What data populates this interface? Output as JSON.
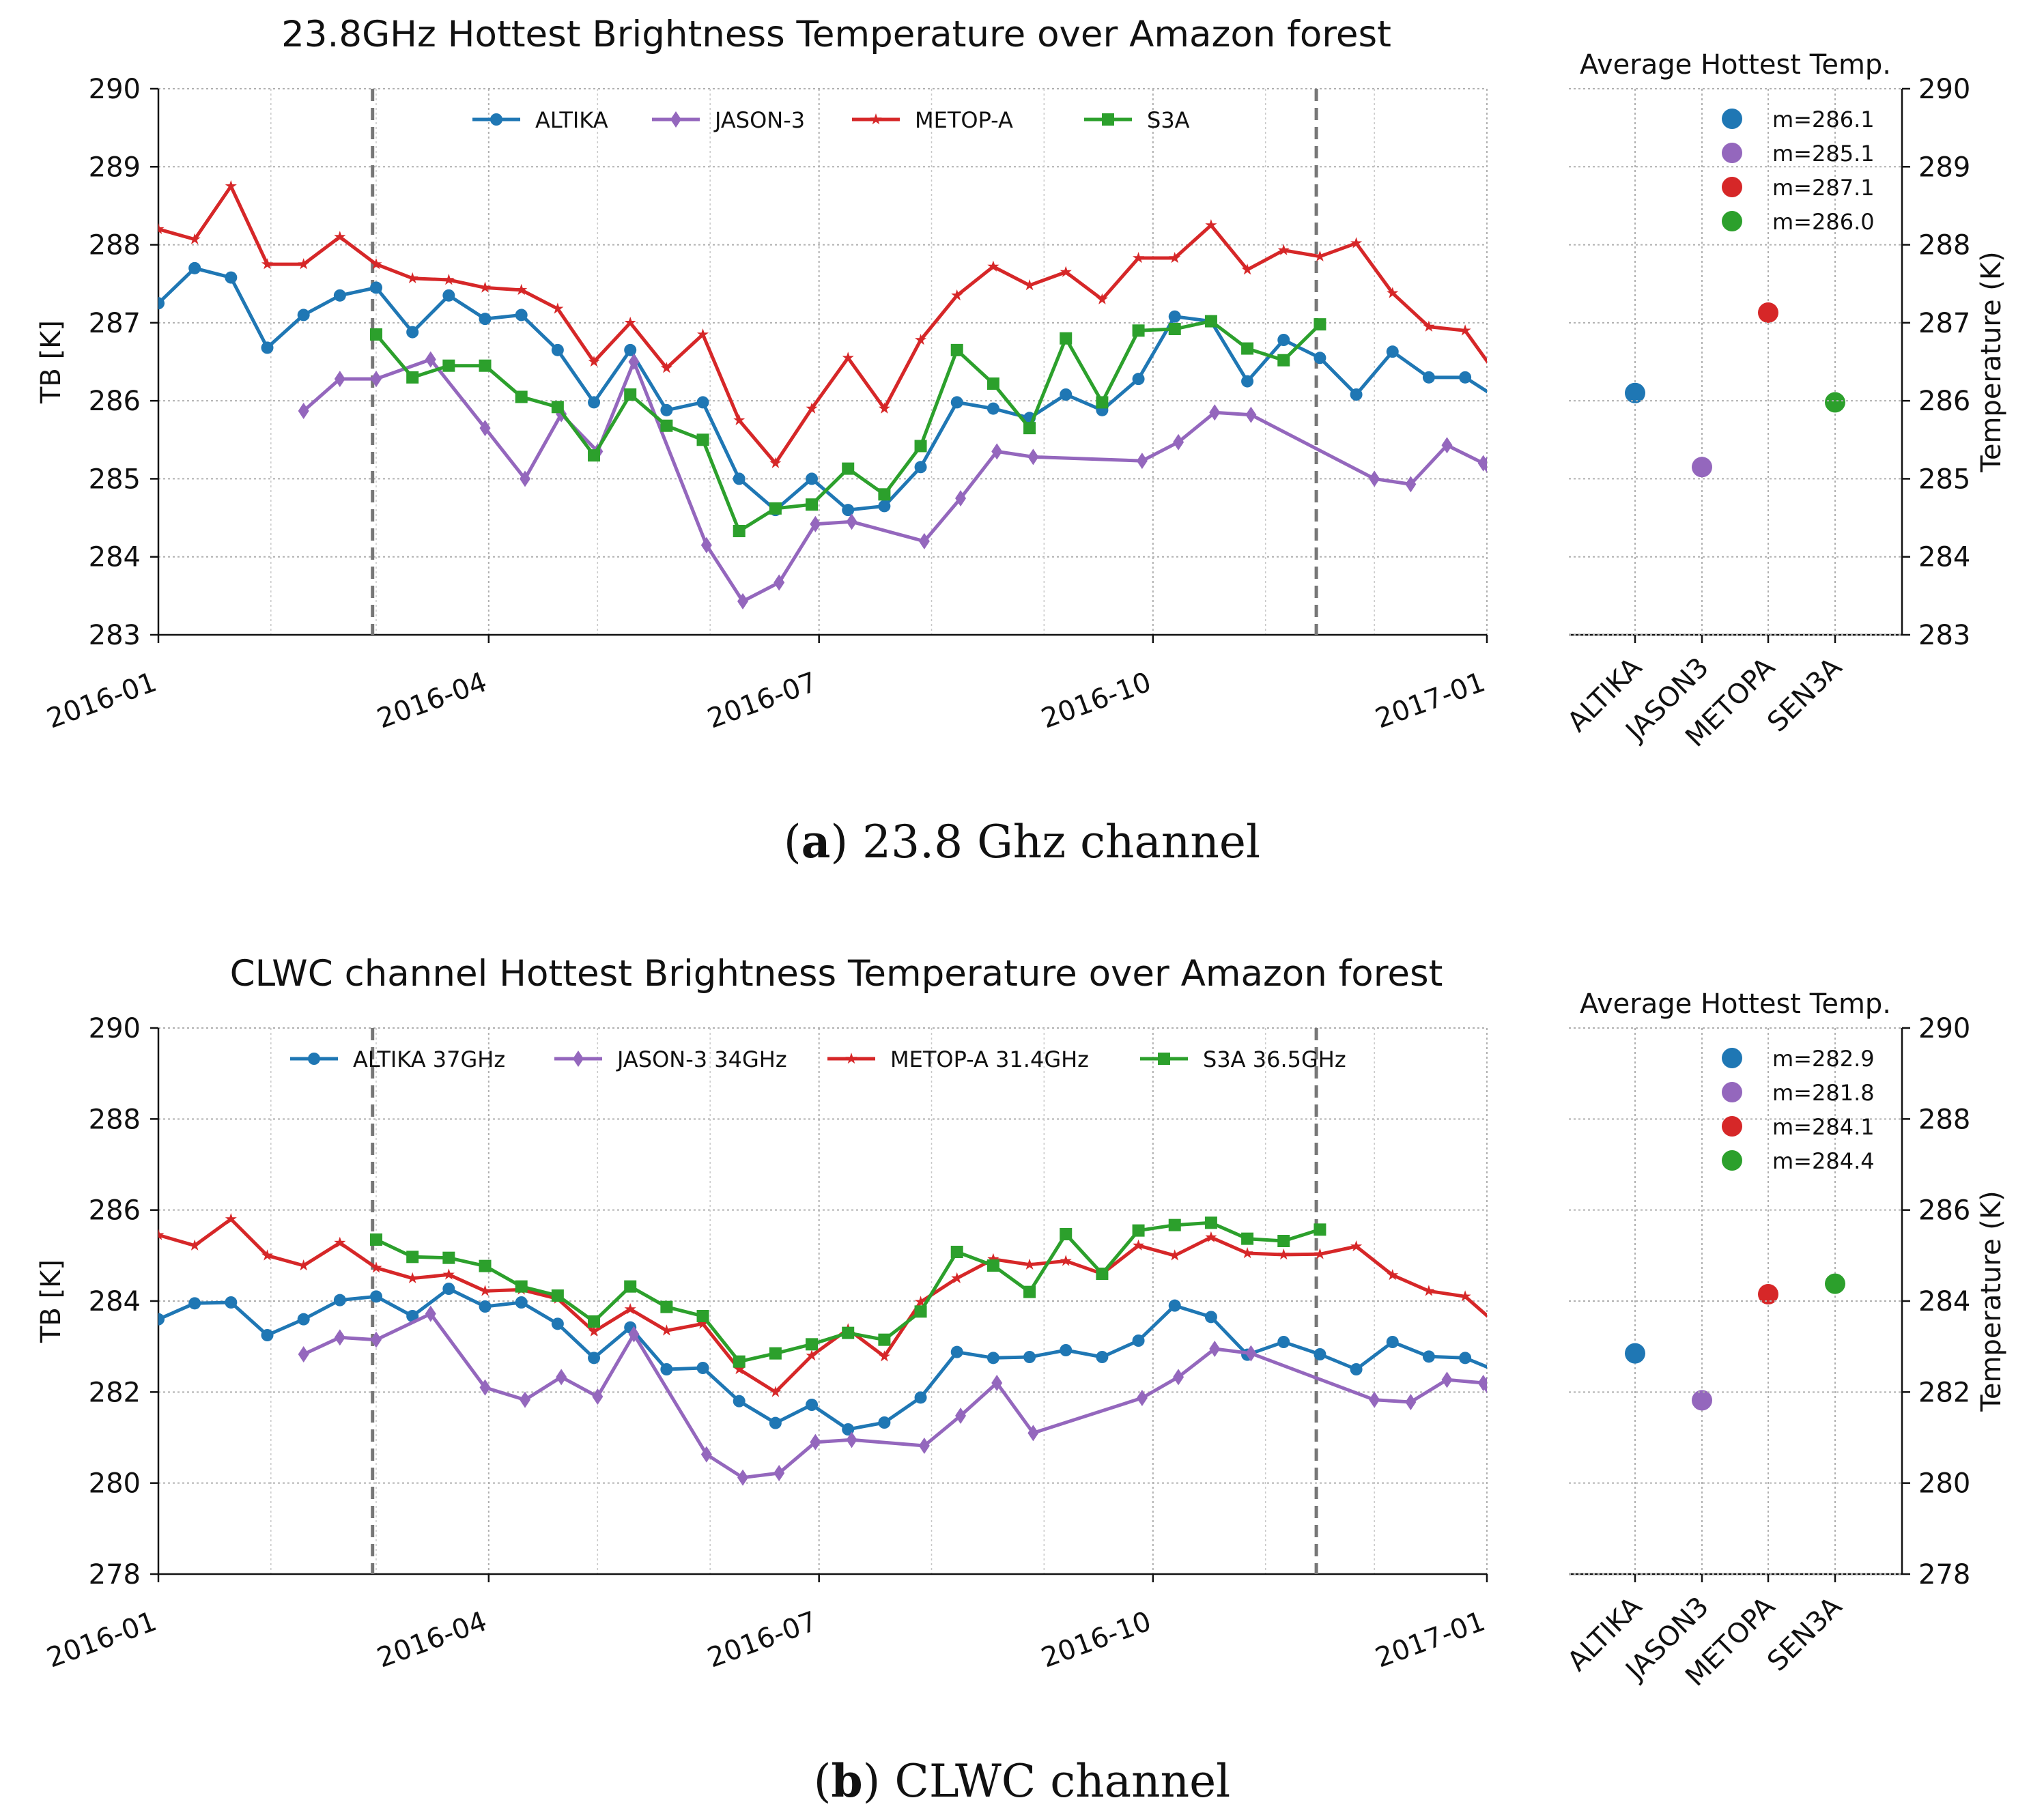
{
  "chart_data": [
    {
      "type": "line",
      "title": "23.8GHz Hottest Brightness Temperature over Amazon forest",
      "xlabel": "",
      "ylabel": "TB [K]",
      "ylim": [
        283,
        290
      ],
      "yticks": [
        "283",
        "284",
        "285",
        "286",
        "287",
        "288",
        "289",
        "290"
      ],
      "xticks": [
        "2016-01",
        "2016-04",
        "2016-07",
        "2016-10",
        "2017-01"
      ],
      "xlim": [
        "2016-01-01",
        "2017-01-01"
      ],
      "vlines": [
        "2016-02-29",
        "2016-11-15"
      ],
      "legend_location": "top-center",
      "series": [
        {
          "name": "ALTIKA",
          "color": "#1f77b4",
          "marker": "circle",
          "start": "2016-01-01",
          "values": [
            287.25,
            287.7,
            287.58,
            286.68,
            287.1,
            287.35,
            287.45,
            286.88,
            287.35,
            287.05,
            287.1,
            286.65,
            285.98,
            286.65,
            285.88,
            285.98,
            285.0,
            284.6,
            285.0,
            284.6,
            284.65,
            285.15,
            285.98,
            285.9,
            285.78,
            286.08,
            285.88,
            286.28,
            287.08,
            287.02,
            286.25,
            286.78,
            286.55,
            286.08,
            286.63,
            286.3,
            286.3,
            286.0
          ]
        },
        {
          "name": "JASON-3",
          "color": "#9467bd",
          "marker": "diamond",
          "points": [
            [
              "2016-02-10",
              285.87
            ],
            [
              "2016-02-20",
              286.28
            ],
            [
              "2016-03-01",
              286.28
            ],
            [
              "2016-03-16",
              286.53
            ],
            [
              "2016-03-31",
              285.65
            ],
            [
              "2016-04-11",
              285.0
            ],
            [
              "2016-04-21",
              285.83
            ],
            [
              "2016-05-01",
              285.35
            ],
            [
              "2016-05-11",
              286.5
            ],
            [
              "2016-05-31",
              284.15
            ],
            [
              "2016-06-10",
              283.43
            ],
            [
              "2016-06-20",
              283.67
            ],
            [
              "2016-06-30",
              284.42
            ],
            [
              "2016-07-10",
              284.45
            ],
            [
              "2016-07-30",
              284.2
            ],
            [
              "2016-08-09",
              284.75
            ],
            [
              "2016-08-19",
              285.35
            ],
            [
              "2016-08-29",
              285.28
            ],
            [
              "2016-09-28",
              285.23
            ],
            [
              "2016-10-08",
              285.47
            ],
            [
              "2016-10-18",
              285.85
            ],
            [
              "2016-10-28",
              285.82
            ],
            [
              "2016-12-01",
              285.0
            ],
            [
              "2016-12-11",
              284.93
            ],
            [
              "2016-12-21",
              285.43
            ],
            [
              "2016-12-31",
              285.2
            ],
            [
              "2017-01-01",
              285.18
            ]
          ]
        },
        {
          "name": "METOP-A",
          "color": "#d62728",
          "marker": "star",
          "start": "2016-01-01",
          "values": [
            288.2,
            288.07,
            288.75,
            287.75,
            287.75,
            288.1,
            287.75,
            287.57,
            287.55,
            287.45,
            287.42,
            287.18,
            286.5,
            287.0,
            286.42,
            286.85,
            285.75,
            285.2,
            285.9,
            286.55,
            285.9,
            286.78,
            287.35,
            287.72,
            287.48,
            287.65,
            287.3,
            287.83,
            287.83,
            288.25,
            287.68,
            287.93,
            287.85,
            288.02,
            287.38,
            286.95,
            286.9,
            286.25
          ]
        },
        {
          "name": "S3A",
          "color": "#2ca02c",
          "marker": "square",
          "start": "2016-03-01",
          "values": [
            286.85,
            286.3,
            286.45,
            286.45,
            286.05,
            285.92,
            285.3,
            286.08,
            285.68,
            285.5,
            284.33,
            284.62,
            284.67,
            285.13,
            284.8,
            285.42,
            286.65,
            286.22,
            285.65,
            286.8,
            285.98,
            286.9,
            286.92,
            287.02,
            286.67,
            286.52,
            286.98
          ]
        }
      ],
      "side_panel": {
        "title": "Average Hottest Temp.",
        "ylabel": "Temperature (K)",
        "categories": [
          "ALTIKA",
          "JASON3",
          "METOPA",
          "SEN3A"
        ],
        "values": [
          286.1,
          285.15,
          287.13,
          285.98
        ],
        "legend_labels": [
          "m=286.1",
          "m=285.1",
          "m=287.1",
          "m=286.0"
        ],
        "colors": [
          "#1f77b4",
          "#9467bd",
          "#d62728",
          "#2ca02c"
        ],
        "ylim": [
          283,
          290
        ],
        "yticks": [
          "283",
          "284",
          "285",
          "286",
          "287",
          "288",
          "289",
          "290"
        ]
      },
      "caption": {
        "label": "a",
        "text": " 23.8 Ghz channel"
      }
    },
    {
      "type": "line",
      "title": "CLWC channel Hottest Brightness Temperature over Amazon forest",
      "xlabel": "",
      "ylabel": "TB [K]",
      "ylim": [
        278,
        290
      ],
      "yticks": [
        "278",
        "280",
        "282",
        "284",
        "286",
        "288",
        "290"
      ],
      "xticks": [
        "2016-01",
        "2016-04",
        "2016-07",
        "2016-10",
        "2017-01"
      ],
      "xlim": [
        "2016-01-01",
        "2017-01-01"
      ],
      "vlines": [
        "2016-02-29",
        "2016-11-15"
      ],
      "legend_location": "top-center",
      "series": [
        {
          "name": "ALTIKA 37GHz",
          "color": "#1f77b4",
          "marker": "circle",
          "start": "2016-01-01",
          "values": [
            283.6,
            283.95,
            283.97,
            283.25,
            283.6,
            284.02,
            284.1,
            283.67,
            284.27,
            283.88,
            283.97,
            283.5,
            282.75,
            283.42,
            282.5,
            282.53,
            281.8,
            281.32,
            281.72,
            281.18,
            281.33,
            281.88,
            282.88,
            282.75,
            282.77,
            282.92,
            282.77,
            283.13,
            283.9,
            283.65,
            282.82,
            283.1,
            282.83,
            282.5,
            283.1,
            282.78,
            282.75,
            282.42
          ]
        },
        {
          "name": "JASON-3 34GHz",
          "color": "#9467bd",
          "marker": "diamond",
          "points": [
            [
              "2016-02-10",
              282.83
            ],
            [
              "2016-02-20",
              283.2
            ],
            [
              "2016-03-01",
              283.15
            ],
            [
              "2016-03-16",
              283.72
            ],
            [
              "2016-03-31",
              282.1
            ],
            [
              "2016-04-11",
              281.83
            ],
            [
              "2016-04-21",
              282.33
            ],
            [
              "2016-05-01",
              281.9
            ],
            [
              "2016-05-11",
              283.27
            ],
            [
              "2016-05-31",
              280.63
            ],
            [
              "2016-06-10",
              280.12
            ],
            [
              "2016-06-20",
              280.22
            ],
            [
              "2016-06-30",
              280.9
            ],
            [
              "2016-07-10",
              280.95
            ],
            [
              "2016-07-30",
              280.82
            ],
            [
              "2016-08-09",
              281.48
            ],
            [
              "2016-08-19",
              282.2
            ],
            [
              "2016-08-29",
              281.1
            ],
            [
              "2016-09-28",
              281.87
            ],
            [
              "2016-10-08",
              282.33
            ],
            [
              "2016-10-18",
              282.95
            ],
            [
              "2016-10-28",
              282.85
            ],
            [
              "2016-12-01",
              281.83
            ],
            [
              "2016-12-11",
              281.78
            ],
            [
              "2016-12-21",
              282.27
            ],
            [
              "2016-12-31",
              282.2
            ],
            [
              "2017-01-01",
              282.15
            ]
          ]
        },
        {
          "name": "METOP-A 31.4GHz",
          "color": "#d62728",
          "marker": "star",
          "start": "2016-01-01",
          "values": [
            285.45,
            285.22,
            285.8,
            285.0,
            284.78,
            285.28,
            284.73,
            284.5,
            284.58,
            284.22,
            284.25,
            284.05,
            283.33,
            283.82,
            283.35,
            283.5,
            282.5,
            282.0,
            282.8,
            283.38,
            282.78,
            283.98,
            284.5,
            284.92,
            284.8,
            284.88,
            284.6,
            285.22,
            285.0,
            285.4,
            285.05,
            285.02,
            285.03,
            285.2,
            284.57,
            284.22,
            284.1,
            283.4
          ]
        },
        {
          "name": "S3A 36.5GHz",
          "color": "#2ca02c",
          "marker": "square",
          "start": "2016-03-01",
          "values": [
            285.35,
            284.97,
            284.95,
            284.77,
            284.32,
            284.12,
            283.55,
            284.32,
            283.87,
            283.67,
            282.67,
            282.85,
            283.05,
            283.3,
            283.15,
            283.77,
            285.08,
            284.78,
            284.2,
            285.47,
            284.6,
            285.55,
            285.67,
            285.72,
            285.37,
            285.32,
            285.57
          ]
        }
      ],
      "side_panel": {
        "title": "Average Hottest Temp.",
        "ylabel": "Temperature (K)",
        "categories": [
          "ALTIKA",
          "JASON3",
          "METOPA",
          "SEN3A"
        ],
        "values": [
          282.85,
          281.82,
          284.15,
          284.38
        ],
        "legend_labels": [
          "m=282.9",
          "m=281.8",
          "m=284.1",
          "m=284.4"
        ],
        "colors": [
          "#1f77b4",
          "#9467bd",
          "#d62728",
          "#2ca02c"
        ],
        "ylim": [
          278,
          290
        ],
        "yticks": [
          "278",
          "280",
          "282",
          "284",
          "286",
          "288",
          "290"
        ]
      },
      "caption": {
        "label": "b",
        "text": " CLWC channel"
      }
    }
  ]
}
